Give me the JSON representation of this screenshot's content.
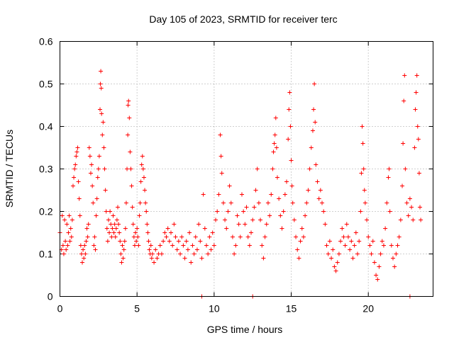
{
  "chart_data": {
    "type": "scatter",
    "title": "Day 105 of 2023, SRMTID for receiver terc",
    "xlabel": "GPS time / hours",
    "ylabel": "SRMTID / TECUs",
    "xlim": [
      0,
      24.2
    ],
    "ylim": [
      0,
      0.6
    ],
    "x_ticks": [
      "0",
      "5",
      "10",
      "15",
      "20"
    ],
    "x_tick_values": [
      0,
      5,
      10,
      15,
      20
    ],
    "y_ticks": [
      "0",
      "0.1",
      "0.2",
      "0.3",
      "0.4",
      "0.5",
      "0.6"
    ],
    "y_tick_values": [
      0,
      0.1,
      0.2,
      0.3,
      0.4,
      0.5,
      0.6
    ],
    "grid": true,
    "marker": "+",
    "color": "#ff0000",
    "series": [
      {
        "name": "SRMTID",
        "points": [
          [
            0.0,
            0.15
          ],
          [
            0.1,
            0.11
          ],
          [
            0.15,
            0.19
          ],
          [
            0.2,
            0.12
          ],
          [
            0.25,
            0.1
          ],
          [
            0.3,
            0.18
          ],
          [
            0.35,
            0.13
          ],
          [
            0.4,
            0.11
          ],
          [
            0.45,
            0.17
          ],
          [
            0.5,
            0.12
          ],
          [
            0.55,
            0.15
          ],
          [
            0.6,
            0.19
          ],
          [
            0.65,
            0.13
          ],
          [
            0.7,
            0.16
          ],
          [
            0.75,
            0.14
          ],
          [
            0.8,
            0.18
          ],
          [
            0.85,
            0.26
          ],
          [
            0.9,
            0.28
          ],
          [
            0.95,
            0.3
          ],
          [
            1.0,
            0.31
          ],
          [
            1.05,
            0.33
          ],
          [
            1.1,
            0.34
          ],
          [
            1.15,
            0.35
          ],
          [
            1.2,
            0.27
          ],
          [
            1.25,
            0.23
          ],
          [
            1.3,
            0.19
          ],
          [
            1.35,
            0.12
          ],
          [
            1.4,
            0.1
          ],
          [
            1.45,
            0.08
          ],
          [
            1.5,
            0.11
          ],
          [
            1.55,
            0.09
          ],
          [
            1.6,
            0.12
          ],
          [
            1.65,
            0.1
          ],
          [
            1.7,
            0.13
          ],
          [
            1.75,
            0.16
          ],
          [
            1.8,
            0.14
          ],
          [
            1.85,
            0.17
          ],
          [
            1.9,
            0.35
          ],
          [
            1.95,
            0.33
          ],
          [
            2.0,
            0.29
          ],
          [
            2.05,
            0.31
          ],
          [
            2.1,
            0.26
          ],
          [
            2.15,
            0.22
          ],
          [
            2.2,
            0.12
          ],
          [
            2.25,
            0.14
          ],
          [
            2.3,
            0.11
          ],
          [
            2.35,
            0.19
          ],
          [
            2.4,
            0.23
          ],
          [
            2.45,
            0.28
          ],
          [
            2.5,
            0.3
          ],
          [
            2.55,
            0.33
          ],
          [
            2.6,
            0.44
          ],
          [
            2.62,
            0.5
          ],
          [
            2.65,
            0.53
          ],
          [
            2.68,
            0.49
          ],
          [
            2.7,
            0.43
          ],
          [
            2.75,
            0.38
          ],
          [
            2.8,
            0.41
          ],
          [
            2.85,
            0.35
          ],
          [
            2.9,
            0.3
          ],
          [
            2.95,
            0.25
          ],
          [
            3.0,
            0.2
          ],
          [
            3.05,
            0.16
          ],
          [
            3.1,
            0.13
          ],
          [
            3.15,
            0.18
          ],
          [
            3.2,
            0.15
          ],
          [
            3.25,
            0.2
          ],
          [
            3.3,
            0.17
          ],
          [
            3.35,
            0.14
          ],
          [
            3.4,
            0.16
          ],
          [
            3.45,
            0.19
          ],
          [
            3.5,
            0.15
          ],
          [
            3.55,
            0.17
          ],
          [
            3.6,
            0.14
          ],
          [
            3.65,
            0.16
          ],
          [
            3.7,
            0.18
          ],
          [
            3.75,
            0.21
          ],
          [
            3.8,
            0.17
          ],
          [
            3.85,
            0.15
          ],
          [
            3.9,
            0.13
          ],
          [
            3.95,
            0.1
          ],
          [
            4.0,
            0.08
          ],
          [
            4.05,
            0.12
          ],
          [
            4.1,
            0.09
          ],
          [
            4.15,
            0.11
          ],
          [
            4.2,
            0.13
          ],
          [
            4.25,
            0.16
          ],
          [
            4.3,
            0.22
          ],
          [
            4.35,
            0.3
          ],
          [
            4.4,
            0.38
          ],
          [
            4.42,
            0.45
          ],
          [
            4.45,
            0.46
          ],
          [
            4.5,
            0.42
          ],
          [
            4.55,
            0.34
          ],
          [
            4.6,
            0.3
          ],
          [
            4.65,
            0.26
          ],
          [
            4.7,
            0.21
          ],
          [
            4.75,
            0.17
          ],
          [
            4.8,
            0.14
          ],
          [
            4.85,
            0.12
          ],
          [
            4.9,
            0.15
          ],
          [
            4.95,
            0.13
          ],
          [
            5.0,
            0.16
          ],
          [
            5.05,
            0.14
          ],
          [
            5.1,
            0.12
          ],
          [
            5.15,
            0.19
          ],
          [
            5.2,
            0.22
          ],
          [
            5.25,
            0.27
          ],
          [
            5.3,
            0.31
          ],
          [
            5.35,
            0.33
          ],
          [
            5.4,
            0.3
          ],
          [
            5.45,
            0.28
          ],
          [
            5.5,
            0.25
          ],
          [
            5.55,
            0.22
          ],
          [
            5.6,
            0.2
          ],
          [
            5.65,
            0.17
          ],
          [
            5.7,
            0.15
          ],
          [
            5.75,
            0.13
          ],
          [
            5.8,
            0.11
          ],
          [
            5.85,
            0.1
          ],
          [
            5.9,
            0.12
          ],
          [
            5.95,
            0.09
          ],
          [
            6.0,
            0.1
          ],
          [
            6.1,
            0.08
          ],
          [
            6.2,
            0.11
          ],
          [
            6.3,
            0.09
          ],
          [
            6.4,
            0.1
          ],
          [
            6.5,
            0.12
          ],
          [
            6.6,
            0.1
          ],
          [
            6.7,
            0.13
          ],
          [
            6.8,
            0.15
          ],
          [
            6.9,
            0.14
          ],
          [
            7.0,
            0.16
          ],
          [
            7.1,
            0.13
          ],
          [
            7.2,
            0.15
          ],
          [
            7.3,
            0.12
          ],
          [
            7.4,
            0.17
          ],
          [
            7.5,
            0.14
          ],
          [
            7.6,
            0.11
          ],
          [
            7.7,
            0.13
          ],
          [
            7.8,
            0.1
          ],
          [
            7.9,
            0.14
          ],
          [
            8.0,
            0.12
          ],
          [
            8.1,
            0.09
          ],
          [
            8.2,
            0.13
          ],
          [
            8.3,
            0.11
          ],
          [
            8.4,
            0.15
          ],
          [
            8.5,
            0.08
          ],
          [
            8.6,
            0.12
          ],
          [
            8.7,
            0.1
          ],
          [
            8.8,
            0.14
          ],
          [
            8.9,
            0.11
          ],
          [
            9.0,
            0.17
          ],
          [
            9.1,
            0.13
          ],
          [
            9.2,
            0.09
          ],
          [
            9.3,
            0.24
          ],
          [
            9.4,
            0.16
          ],
          [
            9.5,
            0.12
          ],
          [
            9.6,
            0.1
          ],
          [
            9.7,
            0.14
          ],
          [
            9.8,
            0.11
          ],
          [
            9.9,
            0.15
          ],
          [
            10.0,
            0.12
          ],
          [
            10.1,
            0.18
          ],
          [
            10.2,
            0.2
          ],
          [
            10.3,
            0.24
          ],
          [
            10.4,
            0.38
          ],
          [
            10.45,
            0.33
          ],
          [
            10.5,
            0.29
          ],
          [
            10.6,
            0.22
          ],
          [
            10.7,
            0.18
          ],
          [
            10.8,
            0.16
          ],
          [
            10.9,
            0.2
          ],
          [
            11.0,
            0.26
          ],
          [
            11.1,
            0.22
          ],
          [
            11.2,
            0.14
          ],
          [
            11.3,
            0.1
          ],
          [
            11.4,
            0.12
          ],
          [
            11.5,
            0.19
          ],
          [
            11.6,
            0.17
          ],
          [
            11.7,
            0.14
          ],
          [
            11.8,
            0.24
          ],
          [
            11.9,
            0.2
          ],
          [
            12.0,
            0.17
          ],
          [
            12.1,
            0.21
          ],
          [
            12.2,
            0.14
          ],
          [
            12.3,
            0.12
          ],
          [
            12.4,
            0.15
          ],
          [
            12.5,
            0.18
          ],
          [
            12.6,
            0.21
          ],
          [
            12.7,
            0.25
          ],
          [
            12.8,
            0.3
          ],
          [
            12.9,
            0.22
          ],
          [
            13.0,
            0.18
          ],
          [
            13.1,
            0.12
          ],
          [
            13.2,
            0.09
          ],
          [
            13.3,
            0.14
          ],
          [
            13.4,
            0.17
          ],
          [
            13.5,
            0.22
          ],
          [
            13.6,
            0.19
          ],
          [
            13.7,
            0.24
          ],
          [
            13.8,
            0.3
          ],
          [
            13.85,
            0.34
          ],
          [
            13.9,
            0.36
          ],
          [
            13.95,
            0.38
          ],
          [
            14.0,
            0.42
          ],
          [
            14.05,
            0.35
          ],
          [
            14.1,
            0.28
          ],
          [
            14.2,
            0.23
          ],
          [
            14.3,
            0.19
          ],
          [
            14.4,
            0.16
          ],
          [
            14.5,
            0.2
          ],
          [
            14.6,
            0.24
          ],
          [
            14.7,
            0.27
          ],
          [
            14.8,
            0.37
          ],
          [
            14.85,
            0.44
          ],
          [
            14.9,
            0.48
          ],
          [
            14.95,
            0.4
          ],
          [
            15.0,
            0.32
          ],
          [
            15.05,
            0.26
          ],
          [
            15.1,
            0.22
          ],
          [
            15.2,
            0.18
          ],
          [
            15.3,
            0.14
          ],
          [
            15.4,
            0.11
          ],
          [
            15.5,
            0.09
          ],
          [
            15.6,
            0.13
          ],
          [
            15.7,
            0.16
          ],
          [
            15.8,
            0.14
          ],
          [
            15.9,
            0.19
          ],
          [
            16.0,
            0.22
          ],
          [
            16.1,
            0.25
          ],
          [
            16.2,
            0.3
          ],
          [
            16.3,
            0.35
          ],
          [
            16.4,
            0.39
          ],
          [
            16.45,
            0.44
          ],
          [
            16.5,
            0.5
          ],
          [
            16.55,
            0.41
          ],
          [
            16.6,
            0.31
          ],
          [
            16.7,
            0.27
          ],
          [
            16.8,
            0.23
          ],
          [
            16.9,
            0.25
          ],
          [
            17.0,
            0.22
          ],
          [
            17.1,
            0.2
          ],
          [
            17.2,
            0.17
          ],
          [
            17.3,
            0.12
          ],
          [
            17.4,
            0.1
          ],
          [
            17.5,
            0.13
          ],
          [
            17.6,
            0.09
          ],
          [
            17.7,
            0.11
          ],
          [
            17.8,
            0.07
          ],
          [
            17.9,
            0.06
          ],
          [
            18.0,
            0.08
          ],
          [
            18.1,
            0.1
          ],
          [
            18.2,
            0.13
          ],
          [
            18.3,
            0.16
          ],
          [
            18.4,
            0.14
          ],
          [
            18.5,
            0.12
          ],
          [
            18.6,
            0.17
          ],
          [
            18.7,
            0.14
          ],
          [
            18.8,
            0.11
          ],
          [
            18.9,
            0.13
          ],
          [
            19.0,
            0.09
          ],
          [
            19.1,
            0.12
          ],
          [
            19.2,
            0.15
          ],
          [
            19.3,
            0.1
          ],
          [
            19.4,
            0.13
          ],
          [
            19.5,
            0.2
          ],
          [
            19.55,
            0.29
          ],
          [
            19.6,
            0.4
          ],
          [
            19.65,
            0.36
          ],
          [
            19.7,
            0.3
          ],
          [
            19.75,
            0.25
          ],
          [
            19.8,
            0.22
          ],
          [
            19.9,
            0.18
          ],
          [
            20.0,
            0.14
          ],
          [
            20.1,
            0.12
          ],
          [
            20.2,
            0.1
          ],
          [
            20.3,
            0.13
          ],
          [
            20.4,
            0.08
          ],
          [
            20.5,
            0.05
          ],
          [
            20.6,
            0.04
          ],
          [
            20.7,
            0.07
          ],
          [
            20.8,
            0.1
          ],
          [
            20.9,
            0.13
          ],
          [
            21.0,
            0.12
          ],
          [
            21.1,
            0.16
          ],
          [
            21.2,
            0.22
          ],
          [
            21.3,
            0.28
          ],
          [
            21.35,
            0.3
          ],
          [
            21.4,
            0.2
          ],
          [
            21.5,
            0.12
          ],
          [
            21.6,
            0.09
          ],
          [
            21.7,
            0.07
          ],
          [
            21.8,
            0.1
          ],
          [
            21.9,
            0.12
          ],
          [
            22.0,
            0.14
          ],
          [
            22.1,
            0.18
          ],
          [
            22.2,
            0.26
          ],
          [
            22.25,
            0.36
          ],
          [
            22.3,
            0.46
          ],
          [
            22.35,
            0.52
          ],
          [
            22.4,
            0.3
          ],
          [
            22.5,
            0.22
          ],
          [
            22.6,
            0.19
          ],
          [
            22.7,
            0.23
          ],
          [
            22.8,
            0.21
          ],
          [
            22.9,
            0.18
          ],
          [
            23.0,
            0.35
          ],
          [
            23.05,
            0.44
          ],
          [
            23.1,
            0.48
          ],
          [
            23.15,
            0.52
          ],
          [
            23.2,
            0.4
          ],
          [
            23.25,
            0.37
          ],
          [
            23.3,
            0.29
          ],
          [
            23.35,
            0.21
          ],
          [
            23.4,
            0.18
          ],
          [
            9.2,
            0.0
          ],
          [
            12.5,
            0.0
          ],
          [
            22.7,
            0.0
          ]
        ]
      }
    ]
  }
}
